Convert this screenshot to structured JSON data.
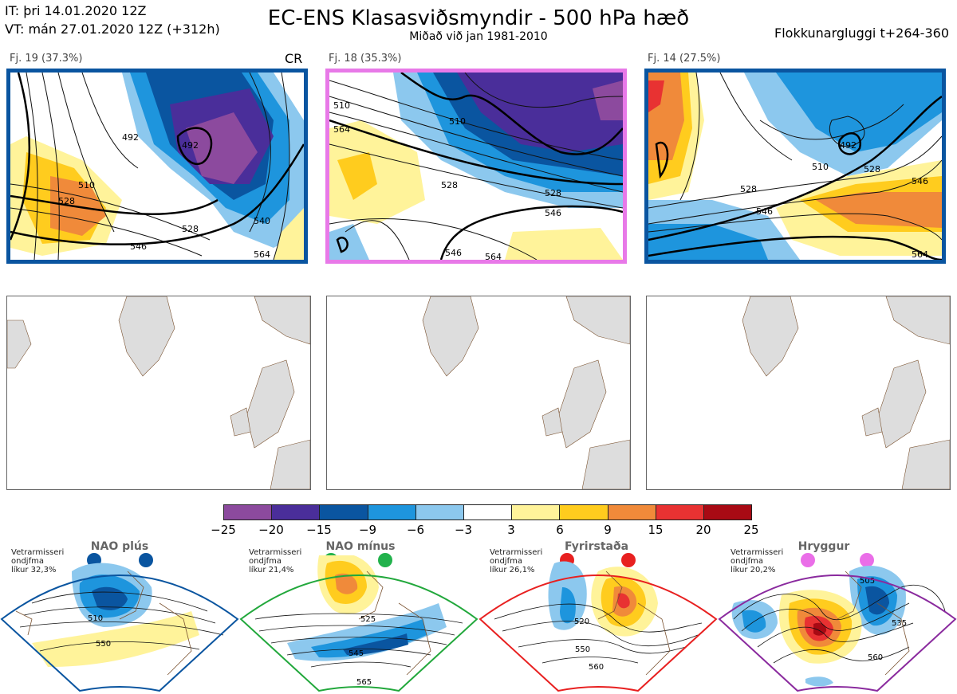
{
  "header": {
    "it": "IT: þri 14.01.2020 12Z",
    "vt": "VT: mán 27.01.2020 12Z  (+312h)",
    "title": "EC-ENS Klasasviðsmyndir - 500 hPa hæð",
    "subtitle": "Miðað við jan 1981-2010",
    "window": "Flokkunargluggi t+264-360"
  },
  "panels": [
    {
      "label": "Fj. 19 (37.3%)",
      "tag": "CR",
      "border": "#0a55a0",
      "contours": [
        "492",
        "510",
        "528",
        "540",
        "546",
        "564",
        "492",
        "528"
      ]
    },
    {
      "label": "Fj. 18 (35.3%)",
      "tag": "",
      "border": "#e879e8",
      "contours": [
        "510",
        "510",
        "528",
        "528",
        "546",
        "546",
        "564",
        "564"
      ]
    },
    {
      "label": "Fj. 14 (27.5%)",
      "tag": "",
      "border": "#0a55a0",
      "contours": [
        "492",
        "510",
        "528",
        "546",
        "528",
        "546",
        "564"
      ]
    }
  ],
  "colorbar": {
    "ticks": [
      "−25",
      "−20",
      "−15",
      "−9",
      "−6",
      "−3",
      "3",
      "6",
      "9",
      "15",
      "20",
      "25"
    ],
    "colors": [
      "#8c4a9e",
      "#4a2e9a",
      "#0a55a0",
      "#1e95dd",
      "#8cc8ee",
      "#ffffff",
      "#fff39a",
      "#ffcc1e",
      "#f08a3a",
      "#e83232",
      "#a80a14"
    ]
  },
  "regimes": [
    {
      "name": "NAO plús",
      "season": "Vetrarmisseri",
      "type": "ondjfma",
      "prob": "líkur 32,3%",
      "dot": "#0a55a0",
      "border": "#0a55a0",
      "contours": [
        "510",
        "550"
      ]
    },
    {
      "name": "NAO mínus",
      "season": "Vetrarmisseri",
      "type": "ondjfma",
      "prob": "líkur 21,4%",
      "dot": "#22b24c",
      "border": "#22a83c",
      "contours": [
        "525",
        "545",
        "565"
      ]
    },
    {
      "name": "Fyrirstaða",
      "season": "Vetrarmisseri",
      "type": "ondjfma",
      "prob": "líkur 26,1%",
      "dot": "#e82020",
      "border": "#e82020",
      "contours": [
        "520",
        "550",
        "560"
      ]
    },
    {
      "name": "Hryggur",
      "season": "Vetrarmisseri",
      "type": "ondjfma",
      "prob": "líkur 20,2%",
      "dot": "#ea6ee8",
      "border": "#8a2a9e",
      "contours": [
        "505",
        "535",
        "560"
      ]
    }
  ]
}
